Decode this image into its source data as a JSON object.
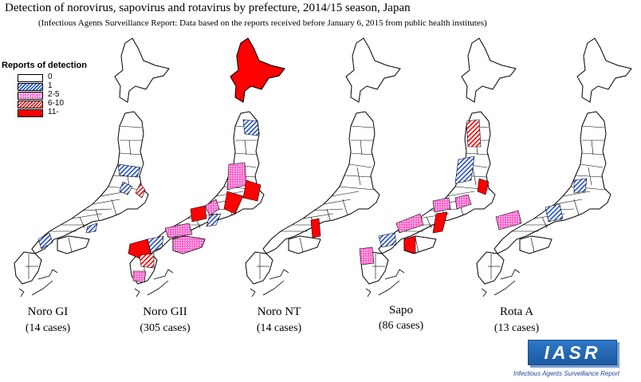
{
  "title": "Detection of norovirus, sapovirus and rotavirus by prefecture, 2014/15 season, Japan",
  "subtitle": "(Infectious Agents Surveillance Report: Data based on the reports received before January 6, 2015 from public health institutes)",
  "legend": {
    "title": "Reports of detection",
    "items": [
      {
        "label": "0",
        "pattern": "none"
      },
      {
        "label": "1",
        "pattern": "blue-hatch"
      },
      {
        "label": "2-5",
        "pattern": "pink-dots"
      },
      {
        "label": "6-10",
        "pattern": "red-hatch"
      },
      {
        "label": "11-",
        "pattern": "solid-red"
      }
    ]
  },
  "maps": [
    {
      "name": "Noro GI",
      "cases": "(14 cases)"
    },
    {
      "name": "Noro GII",
      "cases": "(305 cases)"
    },
    {
      "name": "Noro NT",
      "cases": "(14 cases)"
    },
    {
      "name": "Sapo",
      "cases": "(86 cases)"
    },
    {
      "name": "Rota A",
      "cases": "(13 cases)"
    }
  ],
  "logo": {
    "text": "IASR",
    "caption": "Infectious Agents Surveillance Report"
  },
  "colors": {
    "solid": "#ff0000",
    "blue": "#1f4fd0",
    "pink": "#ff66cc",
    "red": "#ff0000"
  }
}
